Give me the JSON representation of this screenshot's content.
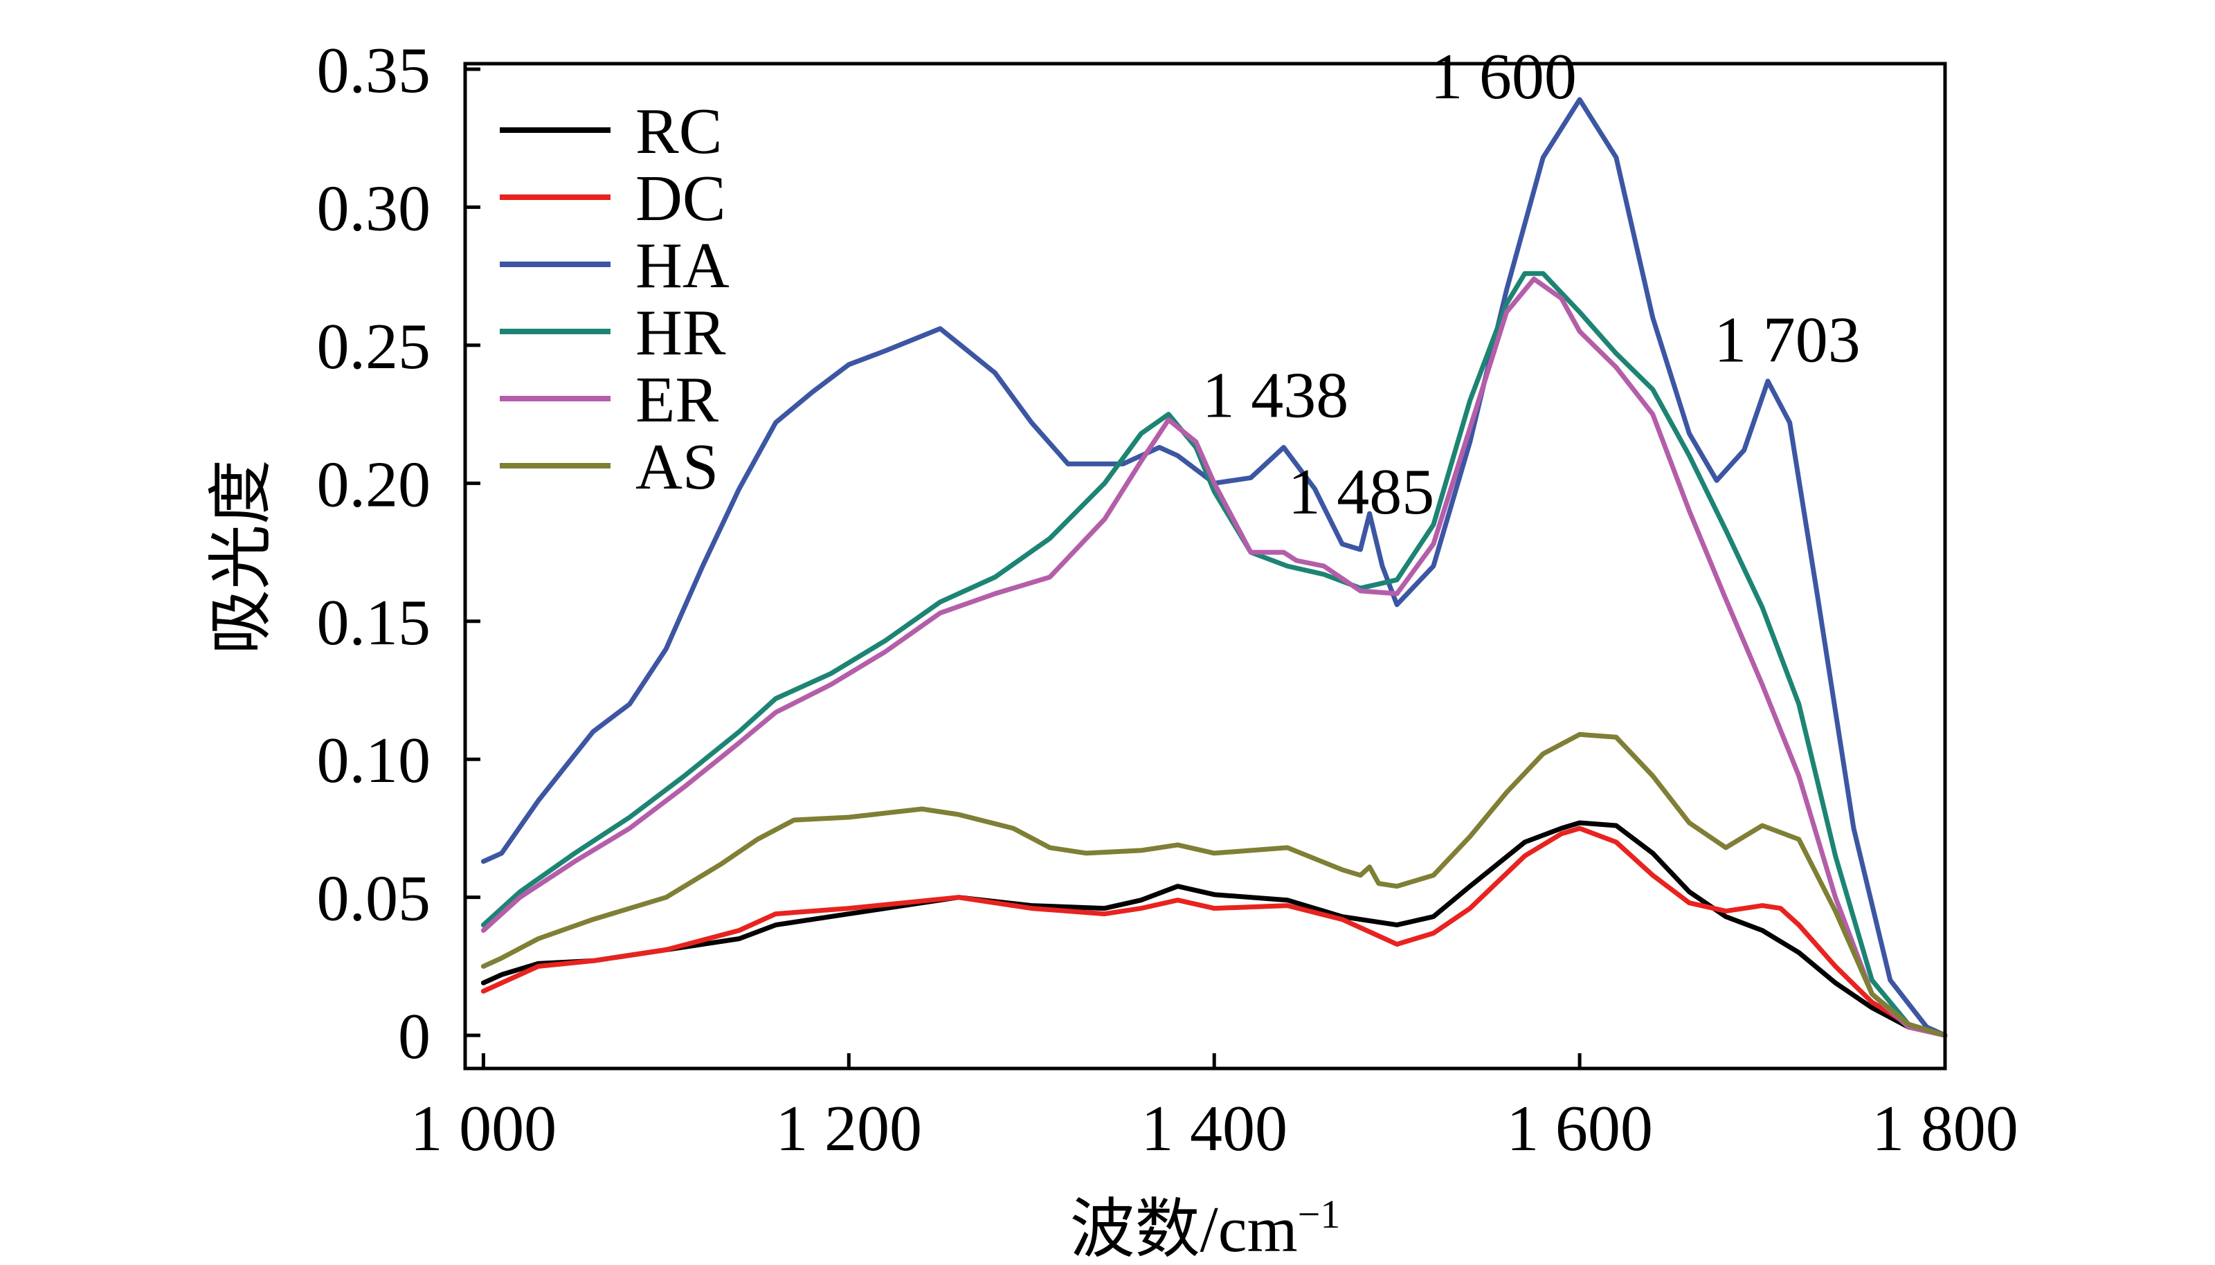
{
  "chart_data": {
    "type": "line",
    "title": "",
    "xlabel": "波数/cm",
    "xlabel_sup": "−1",
    "ylabel": "吸光度",
    "xlim": [
      990,
      1800
    ],
    "ylim": [
      -0.012,
      0.352
    ],
    "x_ticks": [
      1000,
      1200,
      1400,
      1600,
      1800
    ],
    "x_tick_labels": [
      "1 000",
      "1 200",
      "1 400",
      "1 600",
      "1 800"
    ],
    "y_ticks": [
      0,
      0.05,
      0.1,
      0.15,
      0.2,
      0.25,
      0.3,
      0.35
    ],
    "y_tick_labels": [
      "0",
      "0.05",
      "0.10",
      "0.15",
      "0.20",
      "0.25",
      "0.30",
      "0.35"
    ],
    "grid": false,
    "legend_position": "top-left",
    "annotations": [
      {
        "text": "1 600",
        "x": 1600,
        "y": 0.339
      },
      {
        "text": "1 703",
        "x": 1703,
        "y": 0.237
      },
      {
        "text": "1 438",
        "x": 1438,
        "y": 0.212
      },
      {
        "text": "1 485",
        "x": 1485,
        "y": 0.189
      }
    ],
    "series": [
      {
        "name": "RC",
        "color": "#000000",
        "x": [
          1000,
          1010,
          1030,
          1060,
          1100,
          1140,
          1160,
          1200,
          1260,
          1300,
          1340,
          1360,
          1380,
          1400,
          1440,
          1470,
          1490,
          1500,
          1520,
          1540,
          1570,
          1590,
          1600,
          1620,
          1640,
          1660,
          1680,
          1700,
          1720,
          1740,
          1760,
          1780,
          1800
        ],
        "y": [
          0.019,
          0.022,
          0.026,
          0.027,
          0.031,
          0.035,
          0.04,
          0.044,
          0.05,
          0.047,
          0.046,
          0.049,
          0.054,
          0.051,
          0.049,
          0.043,
          0.041,
          0.04,
          0.043,
          0.054,
          0.07,
          0.075,
          0.077,
          0.076,
          0.066,
          0.052,
          0.043,
          0.038,
          0.03,
          0.019,
          0.01,
          0.003,
          0.0
        ]
      },
      {
        "name": "DC",
        "color": "#e8231f",
        "x": [
          1000,
          1010,
          1030,
          1060,
          1100,
          1140,
          1160,
          1200,
          1260,
          1300,
          1340,
          1360,
          1380,
          1400,
          1440,
          1470,
          1490,
          1500,
          1520,
          1540,
          1570,
          1590,
          1600,
          1620,
          1640,
          1660,
          1680,
          1700,
          1710,
          1720,
          1740,
          1760,
          1780,
          1800
        ],
        "y": [
          0.016,
          0.019,
          0.025,
          0.027,
          0.031,
          0.038,
          0.044,
          0.046,
          0.05,
          0.046,
          0.044,
          0.046,
          0.049,
          0.046,
          0.047,
          0.042,
          0.036,
          0.033,
          0.037,
          0.046,
          0.065,
          0.073,
          0.075,
          0.07,
          0.058,
          0.048,
          0.045,
          0.047,
          0.046,
          0.04,
          0.025,
          0.012,
          0.004,
          0.0
        ]
      },
      {
        "name": "HA",
        "color": "#3c56a3",
        "x": [
          1000,
          1010,
          1030,
          1060,
          1080,
          1100,
          1120,
          1140,
          1160,
          1180,
          1200,
          1220,
          1250,
          1280,
          1300,
          1320,
          1350,
          1370,
          1380,
          1400,
          1420,
          1438,
          1455,
          1470,
          1480,
          1485,
          1492,
          1500,
          1520,
          1540,
          1560,
          1580,
          1600,
          1620,
          1640,
          1660,
          1675,
          1690,
          1703,
          1715,
          1730,
          1750,
          1770,
          1790,
          1800
        ],
        "y": [
          0.063,
          0.066,
          0.085,
          0.11,
          0.12,
          0.14,
          0.17,
          0.198,
          0.222,
          0.233,
          0.243,
          0.248,
          0.256,
          0.24,
          0.222,
          0.207,
          0.207,
          0.213,
          0.21,
          0.2,
          0.202,
          0.213,
          0.198,
          0.178,
          0.176,
          0.189,
          0.17,
          0.156,
          0.17,
          0.215,
          0.27,
          0.318,
          0.339,
          0.318,
          0.26,
          0.218,
          0.201,
          0.212,
          0.237,
          0.222,
          0.16,
          0.075,
          0.02,
          0.003,
          0.0
        ]
      },
      {
        "name": "HR",
        "color": "#1d8474",
        "x": [
          1000,
          1020,
          1050,
          1080,
          1110,
          1140,
          1160,
          1190,
          1220,
          1250,
          1280,
          1310,
          1340,
          1360,
          1375,
          1390,
          1400,
          1420,
          1440,
          1460,
          1480,
          1500,
          1520,
          1540,
          1560,
          1570,
          1580,
          1600,
          1620,
          1640,
          1660,
          1680,
          1700,
          1720,
          1740,
          1760,
          1780,
          1800
        ],
        "y": [
          0.04,
          0.052,
          0.066,
          0.079,
          0.094,
          0.11,
          0.122,
          0.131,
          0.143,
          0.157,
          0.166,
          0.18,
          0.2,
          0.218,
          0.225,
          0.213,
          0.197,
          0.175,
          0.17,
          0.167,
          0.162,
          0.165,
          0.185,
          0.23,
          0.265,
          0.276,
          0.276,
          0.262,
          0.247,
          0.234,
          0.21,
          0.183,
          0.155,
          0.12,
          0.065,
          0.02,
          0.004,
          0.0
        ]
      },
      {
        "name": "ER",
        "color": "#b45ea9",
        "x": [
          1000,
          1020,
          1050,
          1080,
          1110,
          1140,
          1160,
          1190,
          1220,
          1250,
          1280,
          1310,
          1340,
          1360,
          1375,
          1390,
          1400,
          1420,
          1438,
          1445,
          1460,
          1480,
          1500,
          1520,
          1540,
          1560,
          1575,
          1590,
          1600,
          1620,
          1640,
          1660,
          1680,
          1700,
          1720,
          1740,
          1760,
          1780,
          1800
        ],
        "y": [
          0.038,
          0.05,
          0.063,
          0.075,
          0.09,
          0.106,
          0.117,
          0.127,
          0.139,
          0.153,
          0.16,
          0.166,
          0.187,
          0.208,
          0.223,
          0.215,
          0.2,
          0.175,
          0.175,
          0.172,
          0.17,
          0.161,
          0.16,
          0.178,
          0.22,
          0.262,
          0.274,
          0.267,
          0.255,
          0.242,
          0.225,
          0.19,
          0.158,
          0.127,
          0.094,
          0.05,
          0.015,
          0.003,
          0.0
        ]
      },
      {
        "name": "AS",
        "color": "#7f7f35",
        "x": [
          1000,
          1010,
          1030,
          1060,
          1100,
          1130,
          1150,
          1170,
          1200,
          1240,
          1260,
          1290,
          1310,
          1330,
          1360,
          1380,
          1400,
          1440,
          1470,
          1480,
          1485,
          1490,
          1500,
          1520,
          1540,
          1560,
          1580,
          1600,
          1620,
          1640,
          1660,
          1680,
          1700,
          1720,
          1740,
          1760,
          1780,
          1800
        ],
        "y": [
          0.025,
          0.028,
          0.035,
          0.042,
          0.05,
          0.062,
          0.071,
          0.078,
          0.079,
          0.082,
          0.08,
          0.075,
          0.068,
          0.066,
          0.067,
          0.069,
          0.066,
          0.068,
          0.06,
          0.058,
          0.061,
          0.055,
          0.054,
          0.058,
          0.072,
          0.088,
          0.102,
          0.109,
          0.108,
          0.094,
          0.077,
          0.068,
          0.076,
          0.071,
          0.045,
          0.015,
          0.004,
          0.0
        ]
      }
    ]
  }
}
